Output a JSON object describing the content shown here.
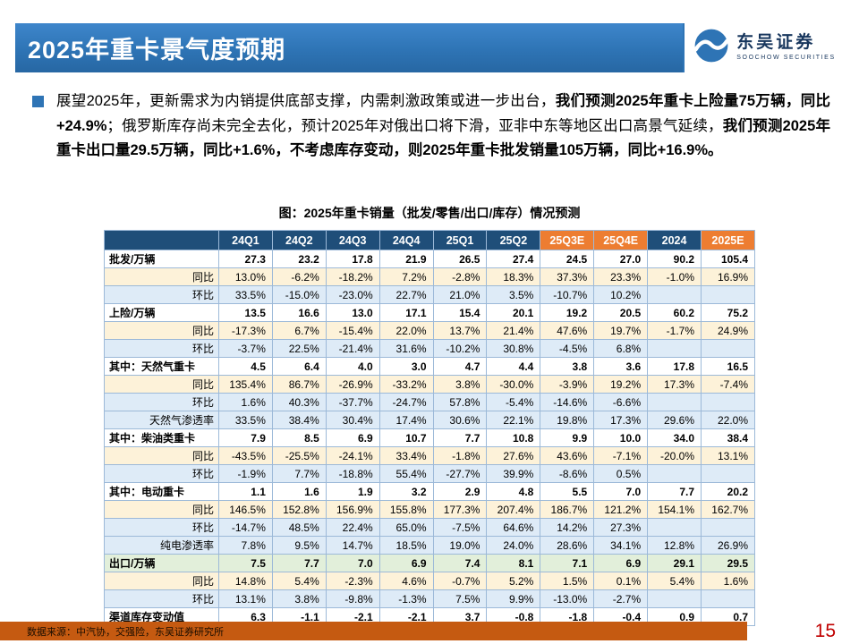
{
  "palette": {
    "band_blue": "#2E74B5",
    "header_navy": "#1F4E79",
    "header_orange": "#ED7D31",
    "row_cream": "#FDF2D9",
    "row_blue": "#DEEBF7",
    "row_green": "#E2EFDA",
    "footer_orange": "#C55A11",
    "page_red": "#C00000",
    "logo_blue": "#17365D"
  },
  "icons": {
    "bullet-square-icon": "blue-square",
    "soochow-logo-icon": "wave-circle"
  },
  "header": {
    "title": "2025年重卡景气度预期",
    "logo": {
      "name": "东吴证券",
      "sub": "SOOCHOW SECURITIES"
    }
  },
  "body": {
    "segments": [
      {
        "text": "展望2025年，更新需求为内销提供底部支撑，内需刺激政策或进一步出台，",
        "bold": false
      },
      {
        "text": "我们预测2025年重卡上险量75万辆，同比+24.9%",
        "bold": true
      },
      {
        "text": "；俄罗斯库存尚未完全去化，预计2025年对俄出口将下滑，亚非中东等地区出口高景气延续，",
        "bold": false
      },
      {
        "text": "我们预测2025年重卡出口量29.5万辆，同比+1.6%，不考虑库存变动，则2025年重卡批发销量105万辆，同比+16.9%。",
        "bold": true
      }
    ]
  },
  "table": {
    "title": "图：2025年重卡销量（批发/零售/出口/库存）情况预测",
    "columns": [
      {
        "label": "",
        "style": "navy"
      },
      {
        "label": "24Q1",
        "style": "navy"
      },
      {
        "label": "24Q2",
        "style": "navy"
      },
      {
        "label": "24Q3",
        "style": "navy"
      },
      {
        "label": "24Q4",
        "style": "navy"
      },
      {
        "label": "25Q1",
        "style": "navy"
      },
      {
        "label": "25Q2",
        "style": "navy"
      },
      {
        "label": "25Q3E",
        "style": "orange"
      },
      {
        "label": "25Q4E",
        "style": "orange"
      },
      {
        "label": "2024",
        "style": "navy"
      },
      {
        "label": "2025E",
        "style": "orange"
      }
    ],
    "rows": [
      {
        "label": "批发/万辆",
        "type": "main",
        "bg": "white",
        "values": [
          "27.3",
          "23.2",
          "17.8",
          "21.9",
          "26.5",
          "27.4",
          "24.5",
          "27.0",
          "90.2",
          "105.4"
        ]
      },
      {
        "label": "同比",
        "type": "sub",
        "bg": "cream",
        "values": [
          "13.0%",
          "-6.2%",
          "-18.2%",
          "7.2%",
          "-2.8%",
          "18.3%",
          "37.3%",
          "23.3%",
          "-1.0%",
          "16.9%"
        ]
      },
      {
        "label": "环比",
        "type": "sub",
        "bg": "blue",
        "values": [
          "33.5%",
          "-15.0%",
          "-23.0%",
          "22.7%",
          "21.0%",
          "3.5%",
          "-10.7%",
          "10.2%",
          "",
          ""
        ]
      },
      {
        "label": "上险/万辆",
        "type": "main",
        "bg": "white",
        "values": [
          "13.5",
          "16.6",
          "13.0",
          "17.1",
          "15.4",
          "20.1",
          "19.2",
          "20.5",
          "60.2",
          "75.2"
        ]
      },
      {
        "label": "同比",
        "type": "sub",
        "bg": "cream",
        "values": [
          "-17.3%",
          "6.7%",
          "-15.4%",
          "22.0%",
          "13.7%",
          "21.4%",
          "47.6%",
          "19.7%",
          "-1.7%",
          "24.9%"
        ]
      },
      {
        "label": "环比",
        "type": "sub",
        "bg": "blue",
        "values": [
          "-3.7%",
          "22.5%",
          "-21.4%",
          "31.6%",
          "-10.2%",
          "30.8%",
          "-4.5%",
          "6.8%",
          "",
          ""
        ]
      },
      {
        "label": "其中：天然气重卡",
        "type": "main",
        "bg": "white",
        "values": [
          "4.5",
          "6.4",
          "4.0",
          "3.0",
          "4.7",
          "4.4",
          "3.8",
          "3.6",
          "17.8",
          "16.5"
        ]
      },
      {
        "label": "同比",
        "type": "sub",
        "bg": "cream",
        "values": [
          "135.4%",
          "86.7%",
          "-26.9%",
          "-33.2%",
          "3.8%",
          "-30.0%",
          "-3.9%",
          "19.2%",
          "17.3%",
          "-7.4%"
        ]
      },
      {
        "label": "环比",
        "type": "sub",
        "bg": "blue",
        "values": [
          "1.6%",
          "40.3%",
          "-37.7%",
          "-24.7%",
          "57.8%",
          "-5.4%",
          "-14.6%",
          "-6.6%",
          "",
          ""
        ]
      },
      {
        "label": "天然气渗透率",
        "type": "sub",
        "bg": "blue",
        "values": [
          "33.5%",
          "38.4%",
          "30.4%",
          "17.4%",
          "30.6%",
          "22.1%",
          "19.8%",
          "17.3%",
          "29.6%",
          "22.0%"
        ]
      },
      {
        "label": "其中：柴油类重卡",
        "type": "main",
        "bg": "white",
        "values": [
          "7.9",
          "8.5",
          "6.9",
          "10.7",
          "7.7",
          "10.8",
          "9.9",
          "10.0",
          "34.0",
          "38.4"
        ]
      },
      {
        "label": "同比",
        "type": "sub",
        "bg": "cream",
        "values": [
          "-43.5%",
          "-25.5%",
          "-24.1%",
          "33.4%",
          "-1.8%",
          "27.6%",
          "43.6%",
          "-7.1%",
          "-20.0%",
          "13.1%"
        ]
      },
      {
        "label": "环比",
        "type": "sub",
        "bg": "blue",
        "values": [
          "-1.9%",
          "7.7%",
          "-18.8%",
          "55.4%",
          "-27.7%",
          "39.9%",
          "-8.6%",
          "0.5%",
          "",
          ""
        ]
      },
      {
        "label": "其中：电动重卡",
        "type": "main",
        "bg": "white",
        "values": [
          "1.1",
          "1.6",
          "1.9",
          "3.2",
          "2.9",
          "4.8",
          "5.5",
          "7.0",
          "7.7",
          "20.2"
        ]
      },
      {
        "label": "同比",
        "type": "sub",
        "bg": "cream",
        "values": [
          "146.5%",
          "152.8%",
          "156.9%",
          "155.8%",
          "177.3%",
          "207.4%",
          "186.7%",
          "121.2%",
          "154.1%",
          "162.7%"
        ]
      },
      {
        "label": "环比",
        "type": "sub",
        "bg": "blue",
        "values": [
          "-14.7%",
          "48.5%",
          "22.4%",
          "65.0%",
          "-7.5%",
          "64.6%",
          "14.2%",
          "27.3%",
          "",
          ""
        ]
      },
      {
        "label": "纯电渗透率",
        "type": "sub",
        "bg": "blue",
        "values": [
          "7.8%",
          "9.5%",
          "14.7%",
          "18.5%",
          "19.0%",
          "24.0%",
          "28.6%",
          "34.1%",
          "12.8%",
          "26.9%"
        ]
      },
      {
        "label": "出口/万辆",
        "type": "main",
        "bg": "green",
        "values": [
          "7.5",
          "7.7",
          "7.0",
          "6.9",
          "7.4",
          "8.1",
          "7.1",
          "6.9",
          "29.1",
          "29.5"
        ]
      },
      {
        "label": "同比",
        "type": "sub",
        "bg": "cream",
        "values": [
          "14.8%",
          "5.4%",
          "-2.3%",
          "4.6%",
          "-0.7%",
          "5.2%",
          "1.5%",
          "0.1%",
          "5.4%",
          "1.6%"
        ]
      },
      {
        "label": "环比",
        "type": "sub",
        "bg": "blue",
        "values": [
          "13.1%",
          "3.8%",
          "-9.8%",
          "-1.3%",
          "7.5%",
          "9.9%",
          "-13.0%",
          "-2.7%",
          "",
          ""
        ]
      },
      {
        "label": "渠道库存变动值",
        "type": "main",
        "bg": "white",
        "values": [
          "6.3",
          "-1.1",
          "-2.1",
          "-2.1",
          "3.7",
          "-0.8",
          "-1.8",
          "-0.4",
          "0.9",
          "0.7"
        ]
      }
    ]
  },
  "footer": {
    "source": "数据来源：中汽协，交强险，东吴证券研究所",
    "page": "15"
  }
}
